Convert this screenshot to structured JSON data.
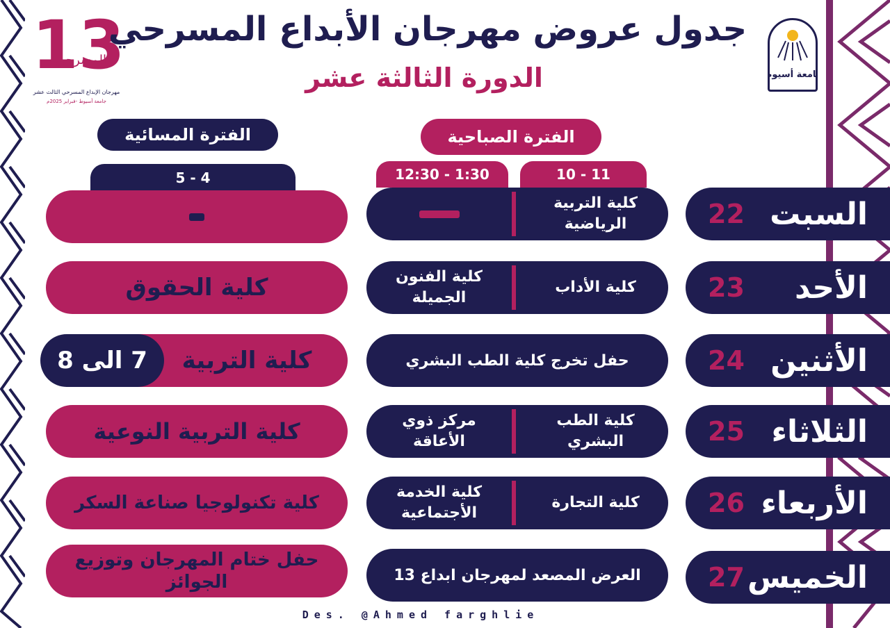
{
  "header": {
    "title": "جدول عروض مهرجان الأبداع المسرحي",
    "subtitle": "الدورة الثالثة عشر",
    "logo_number": "13",
    "logo_script": "المسرحي",
    "logo_caption": "مهرجان الإبداع المسرحي الثالث عشر",
    "logo_caption2": "جامعة أسيوط -فبراير 2025م",
    "univ_logo_text": "جامعة أسيوط"
  },
  "periods": {
    "morning": "الفترة الصباحية",
    "evening": "الفترة المسائية"
  },
  "times": {
    "morning_1": "10 - 11",
    "morning_2": "12:30 - 1:30",
    "evening": "5 - 4"
  },
  "rows": [
    {
      "day": "السبت",
      "date": "22",
      "morning_1": "كلية التربية الرياضية",
      "morning_2": "",
      "evening": ""
    },
    {
      "day": "الأحد",
      "date": "23",
      "morning_1": "كلية الأداب",
      "morning_2": "كلية الفنون الجميلة",
      "evening": "كلية الحقوق"
    },
    {
      "day": "الأثنين",
      "date": "24",
      "morning_full": "حفل تخرج كلية الطب البشري",
      "evening": "كلية التربية",
      "evening_time": "7 الى 8"
    },
    {
      "day": "الثلاثاء",
      "date": "25",
      "morning_1": "كلية الطب البشري",
      "morning_2": "مركز ذوي الأعاقة",
      "evening": "كلية التربية النوعية"
    },
    {
      "day": "الأربعاء",
      "date": "26",
      "morning_1": "كلية التجارة",
      "morning_2": "كلية الخدمة الأجتماعية",
      "evening": "كلية تكنولوجيا صناعة السكر"
    },
    {
      "day": "الخميس",
      "date": "27",
      "morning_full": "العرض المصعد لمهرجان ابداع 13",
      "evening": "حفل ختام المهرجان وتوزيع الجوائز"
    }
  ],
  "credit": "Des. @Ahmed farghlie",
  "colors": {
    "navy": "#1f1d50",
    "magenta": "#b3205f"
  }
}
